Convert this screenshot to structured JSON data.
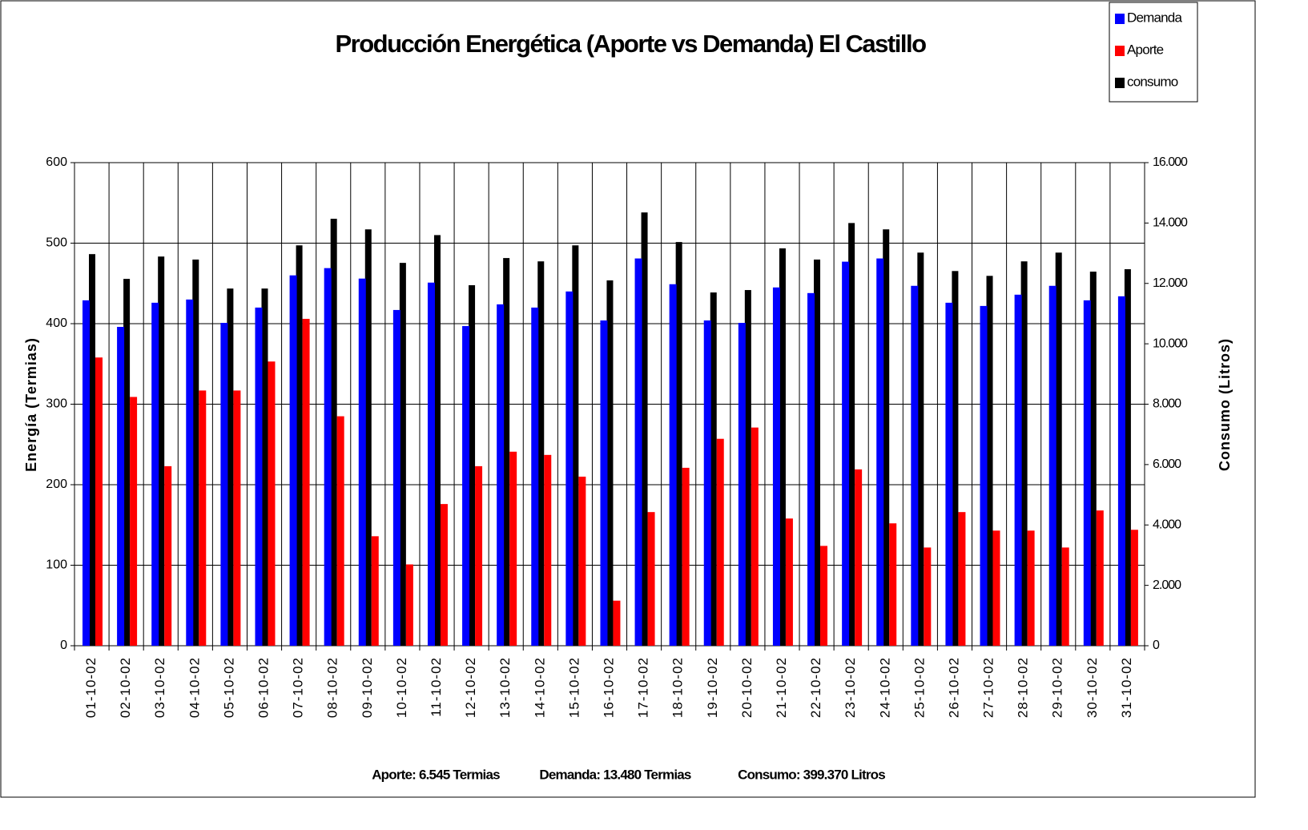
{
  "chart_data": {
    "type": "bar",
    "title": "Producción Energética (Aporte vs  Demanda) El Castillo",
    "y_label": "Energía (Termias)",
    "y2_label": "Consumo (Litros)",
    "annotations": [
      "Aporte: 6.545 Termias",
      "Demanda: 13.480 Termias",
      "Consumo: 399.370 Litros"
    ],
    "categories": [
      "01-10-02",
      "02-10-02",
      "03-10-02",
      "04-10-02",
      "05-10-02",
      "06-10-02",
      "07-10-02",
      "08-10-02",
      "09-10-02",
      "10-10-02",
      "11-10-02",
      "12-10-02",
      "13-10-02",
      "14-10-02",
      "15-10-02",
      "16-10-02",
      "17-10-02",
      "18-10-02",
      "19-10-02",
      "20-10-02",
      "21-10-02",
      "22-10-02",
      "23-10-02",
      "24-10-02",
      "25-10-02",
      "26-10-02",
      "27-10-02",
      "28-10-02",
      "29-10-02",
      "30-10-02",
      "31-10-02"
    ],
    "series": [
      {
        "name": "Demanda",
        "color": "#0000ff",
        "values": [
          429,
          396,
          426,
          430,
          401,
          420,
          460,
          469,
          456,
          417,
          451,
          397,
          424,
          420,
          440,
          404,
          481,
          449,
          404,
          401,
          445,
          438,
          477,
          481,
          447,
          426,
          422,
          436,
          447,
          429,
          434
        ]
      },
      {
        "name": "Aporte",
        "color": "#ff0000",
        "values": [
          358,
          309,
          223,
          317,
          317,
          353,
          406,
          285,
          136,
          101,
          176,
          223,
          241,
          237,
          210,
          56,
          166,
          221,
          257,
          271,
          158,
          124,
          219,
          152,
          122,
          166,
          143,
          143,
          122,
          168,
          144
        ]
      },
      {
        "name": "consumo",
        "color": "#000000",
        "axis": "y2",
        "values": [
          12970,
          12150,
          12890,
          12790,
          11830,
          11830,
          13260,
          14140,
          13790,
          12680,
          13600,
          11940,
          12840,
          12730,
          13260,
          12100,
          14350,
          13370,
          11700,
          11780,
          13160,
          12790,
          14000,
          13790,
          13020,
          12410,
          12250,
          12730,
          13020,
          12390,
          12470
        ]
      }
    ],
    "ylim": [
      0,
      600
    ],
    "yticks": [
      0,
      100,
      200,
      300,
      400,
      500,
      600
    ],
    "y2lim": [
      0,
      16000
    ],
    "y2ticks": [
      0,
      {
        "value": 2000,
        "label": "2.000"
      },
      {
        "value": 4000,
        "label": "4.000"
      },
      {
        "value": 6000,
        "label": "6.000"
      },
      {
        "value": 8000,
        "label": "8.000"
      },
      {
        "value": 10000,
        "label": "10.000"
      },
      {
        "value": 12000,
        "label": "12.000"
      },
      {
        "value": 14000,
        "label": "14.000"
      },
      {
        "value": 16000,
        "label": "16.000"
      }
    ],
    "grid": true,
    "legend": "top-right"
  }
}
